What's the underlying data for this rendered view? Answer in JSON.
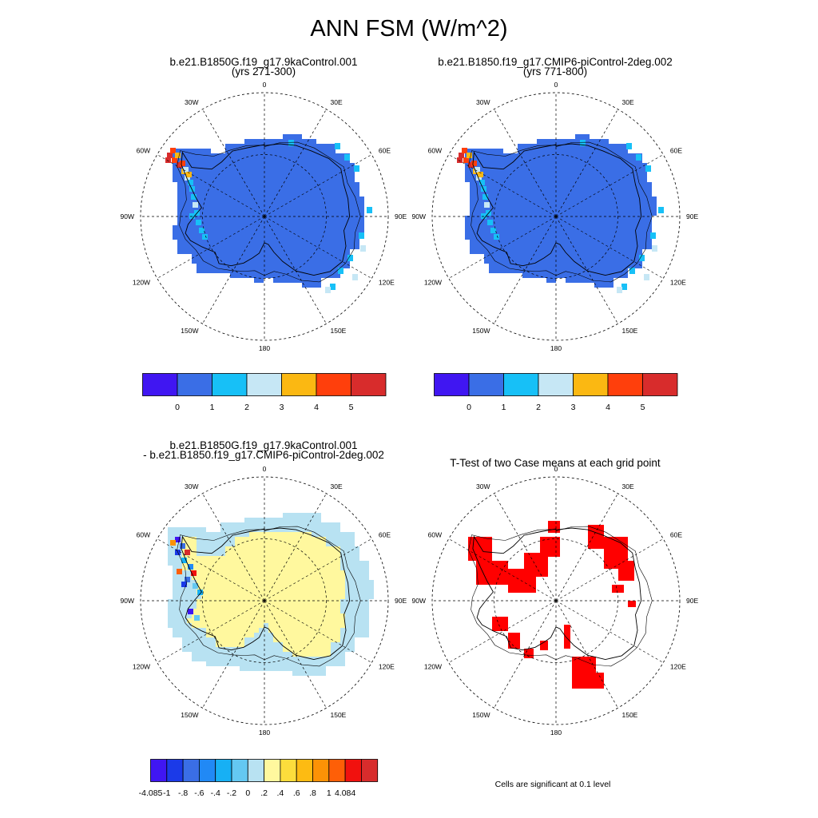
{
  "page": {
    "title": "ANN FSM (W/m^2)"
  },
  "panels": [
    {
      "title_line1": "b.e21.B1850G.f19_g17.9kaControl.001",
      "title_line2": "(yrs 271-300)"
    },
    {
      "title_line1": "b.e21.B1850.f19_g17.CMIP6-piControl-2deg.002",
      "title_line2": "(yrs 771-800)"
    },
    {
      "title_line1": "b.e21.B1850G.f19_g17.9kaControl.001",
      "title_line2": "- b.e21.B1850.f19_g17.CMIP6-piControl-2deg.002"
    },
    {
      "title_line1": "T-Test of two Case means at each grid point",
      "title_line2": ""
    }
  ],
  "map_labels": {
    "lon_0": "0",
    "lon_30e": "30E",
    "lon_60e": "60E",
    "lon_90e": "90E",
    "lon_120e": "120E",
    "lon_150e": "150E",
    "lon_180": "180",
    "lon_150w": "150W",
    "lon_120w": "120W",
    "lon_90w": "90W",
    "lon_60w": "60W",
    "lon_30w": "30W"
  },
  "colorbar_abs": {
    "colors": [
      "#4016f2",
      "#3a6ee6",
      "#17c0f7",
      "#c6e7f5",
      "#fbb812",
      "#ff3f0c",
      "#d82c2c"
    ],
    "ticks": [
      "0",
      "1",
      "2",
      "3",
      "4",
      "5"
    ]
  },
  "colorbar_diff": {
    "colors": [
      "#4016f2",
      "#1b3ae8",
      "#3a6ee6",
      "#2189f5",
      "#17b0f4",
      "#64c8f2",
      "#b8e2f2",
      "#fff89e",
      "#fcdd3c",
      "#fdbb12",
      "#fc9206",
      "#fe5f07",
      "#f1110e",
      "#d82c2c"
    ],
    "ticks": [
      "-4.085",
      "-1",
      "-.8",
      "-.6",
      "-.4",
      "-.2",
      "0",
      ".2",
      ".4",
      ".6",
      ".8",
      "1",
      "4.084"
    ]
  },
  "ttest_note": "Cells are significant at 0.1 level",
  "chart_data": [
    {
      "type": "heatmap",
      "projection": "south polar stereographic",
      "title": "b.e21.B1850G.f19_g17.9kaControl.001 (yrs 271-300)",
      "variable": "ANN FSM",
      "units": "W/m^2",
      "colorbar_levels": [
        0,
        1,
        2,
        3,
        4,
        5
      ],
      "dominant_value_range": [
        0,
        1
      ],
      "peninsula_max_range": [
        5,
        6
      ]
    },
    {
      "type": "heatmap",
      "projection": "south polar stereographic",
      "title": "b.e21.B1850.f19_g17.CMIP6-piControl-2deg.002 (yrs 771-800)",
      "variable": "ANN FSM",
      "units": "W/m^2",
      "colorbar_levels": [
        0,
        1,
        2,
        3,
        4,
        5
      ],
      "dominant_value_range": [
        0,
        1
      ],
      "peninsula_max_range": [
        5,
        6
      ]
    },
    {
      "type": "heatmap",
      "projection": "south polar stereographic",
      "title": "b.e21.B1850G.f19_g17.9kaControl.001 - b.e21.B1850.f19_g17.CMIP6-piControl-2deg.002",
      "colorbar_levels": [
        -4.085,
        -1,
        -0.8,
        -0.6,
        -0.4,
        -0.2,
        0,
        0.2,
        0.4,
        0.6,
        0.8,
        1,
        4.084
      ],
      "interior_value_range": [
        0,
        0.2
      ],
      "coastal_value_range": [
        -0.2,
        0
      ]
    },
    {
      "type": "heatmap",
      "projection": "south polar stereographic",
      "title": "T-Test of two Case means at each grid point",
      "significance_level": 0.1,
      "significant_color": "#ff0000"
    }
  ]
}
